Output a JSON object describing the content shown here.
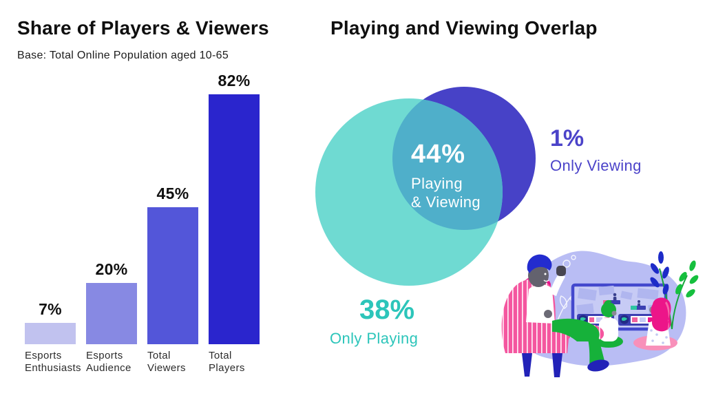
{
  "left_chart": {
    "title": "Share of Players & Viewers",
    "subtitle": "Base: Total Online Population aged 10-65",
    "bars": [
      {
        "label_line1": "Esports",
        "label_line2": "Enthusiasts",
        "value": 7,
        "value_label": "7%",
        "color": "#c1c2ef"
      },
      {
        "label_line1": "Esports",
        "label_line2": "Audience",
        "value": 20,
        "value_label": "20%",
        "color": "#8789e3"
      },
      {
        "label_line1": "Total",
        "label_line2": "Viewers",
        "value": 45,
        "value_label": "45%",
        "color": "#5356d9"
      },
      {
        "label_line1": "Total",
        "label_line2": "Players",
        "value": 82,
        "value_label": "82%",
        "color": "#2a25cd"
      }
    ]
  },
  "right_chart": {
    "title": "Playing and Viewing Overlap",
    "venn": {
      "overlap_pct": "44%",
      "overlap_label_line1": "Playing",
      "overlap_label_line2": "& Viewing",
      "only_viewing_pct": "1%",
      "only_viewing_label": "Only Viewing",
      "only_playing_pct": "38%",
      "only_playing_label": "Only Playing",
      "playing_circle_color": "#6fdad2",
      "viewing_circle_color": "#4742c7",
      "overlap_color": "#4fafca",
      "overlap_text_color": "#ffffff",
      "only_viewing_text_color": "#4b43c9",
      "only_playing_text_color": "#2cc5ba"
    }
  },
  "chart_data": [
    {
      "type": "bar",
      "title": "Share of Players & Viewers",
      "subtitle": "Base: Total Online Population aged 10-65",
      "categories": [
        "Esports Enthusiasts",
        "Esports Audience",
        "Total Viewers",
        "Total Players"
      ],
      "values": [
        7,
        20,
        45,
        82
      ],
      "unit": "%",
      "ylim": [
        0,
        100
      ],
      "grid": false,
      "data_labels": [
        "7%",
        "20%",
        "45%",
        "82%"
      ],
      "bar_colors": [
        "#c1c2ef",
        "#8789e3",
        "#5356d9",
        "#2a25cd"
      ]
    },
    {
      "type": "venn",
      "title": "Playing and Viewing Overlap",
      "sets": [
        {
          "name": "Playing",
          "color": "#6fdad2",
          "only_value_pct": 38,
          "only_label": "Only Playing"
        },
        {
          "name": "Viewing",
          "color": "#4742c7",
          "only_value_pct": 1,
          "only_label": "Only Viewing"
        }
      ],
      "intersection": {
        "name": "Playing & Viewing",
        "value_pct": 44,
        "color": "#4fafca"
      }
    }
  ]
}
